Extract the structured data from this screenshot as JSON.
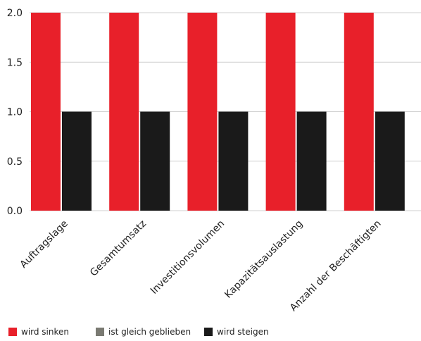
{
  "chart_data": {
    "type": "bar",
    "categories": [
      "Auftragslage",
      "Gesamtumsatz",
      "Investitionsvolumen",
      "Kapazitätsauslastung",
      "Anzahl der Beschäftigten"
    ],
    "series": [
      {
        "name": "wird sinken",
        "values": [
          2.0,
          2.0,
          2.0,
          2.0,
          2.0
        ],
        "color": "#e8202a"
      },
      {
        "name": "ist gleich geblieben",
        "values": [
          0,
          0,
          0,
          0,
          0
        ],
        "color": "#7a7a72"
      },
      {
        "name": "wird steigen",
        "values": [
          1.0,
          1.0,
          1.0,
          1.0,
          1.0
        ],
        "color": "#1a1a1a"
      }
    ],
    "yticks": [
      "0.0",
      "0.5",
      "1.0",
      "1.5",
      "2.0"
    ],
    "ylim": [
      0,
      2.0
    ],
    "grid": true,
    "legend_position": "bottom-left"
  }
}
